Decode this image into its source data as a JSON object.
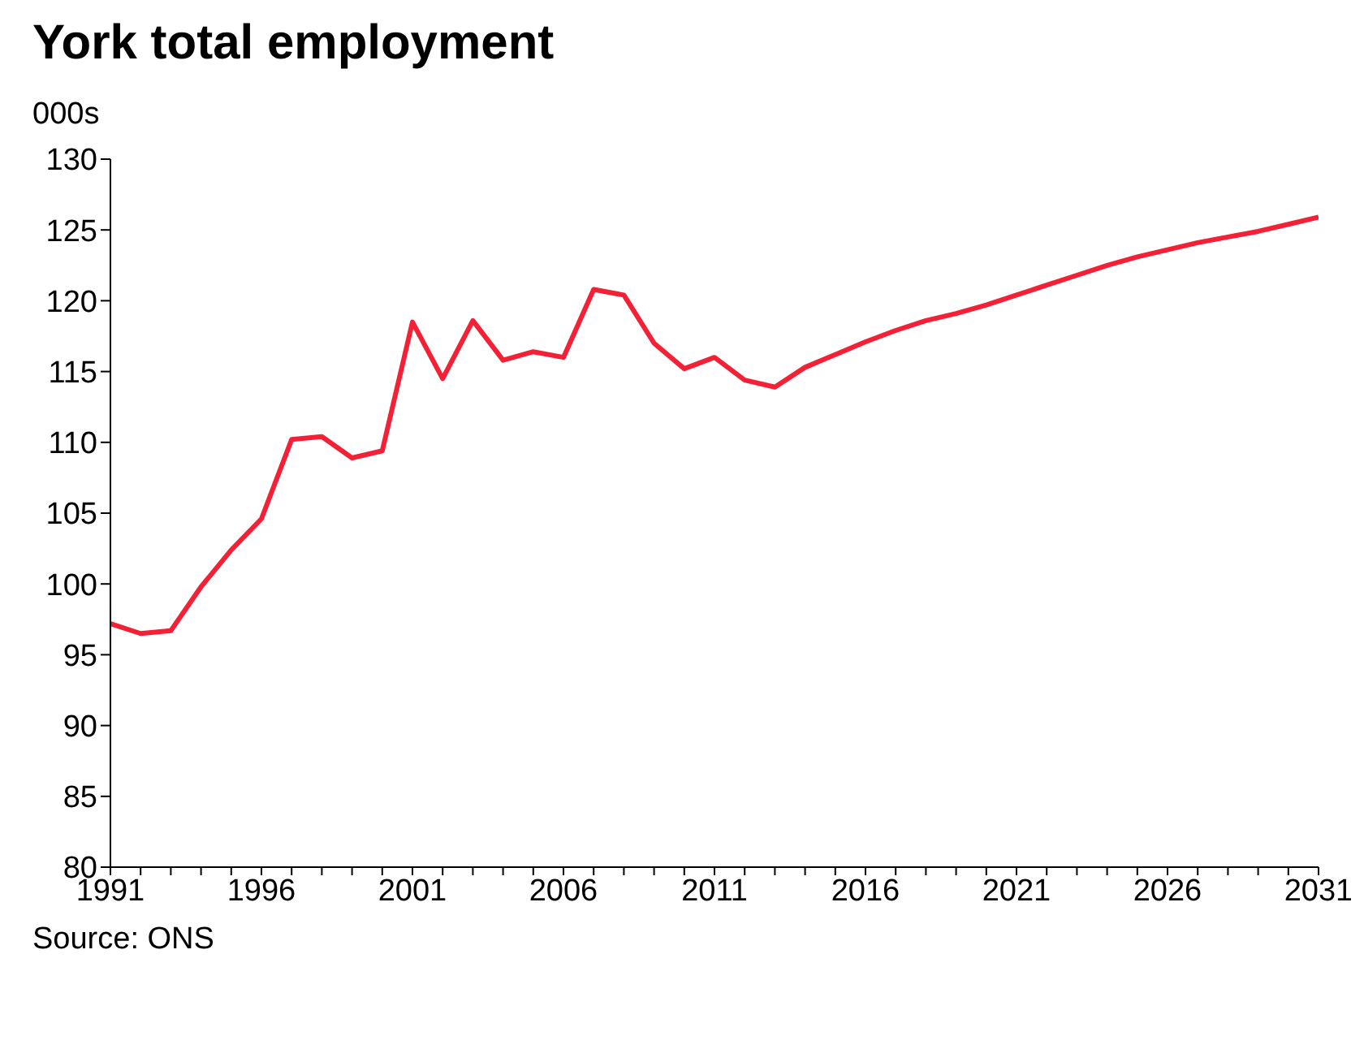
{
  "chart_data": {
    "type": "line",
    "title": "York total employment",
    "ylabel": "000s",
    "annotations": [
      "Source: ONS"
    ],
    "x": [
      1991,
      1992,
      1993,
      1994,
      1995,
      1996,
      1997,
      1998,
      1999,
      2000,
      2001,
      2002,
      2003,
      2004,
      2005,
      2006,
      2007,
      2008,
      2009,
      2010,
      2011,
      2012,
      2013,
      2014,
      2015,
      2016,
      2017,
      2018,
      2019,
      2020,
      2021,
      2022,
      2023,
      2024,
      2025,
      2026,
      2027,
      2028,
      2029,
      2030,
      2031
    ],
    "series": [
      {
        "color": "#f42035",
        "values": [
          97.2,
          96.5,
          96.7,
          99.8,
          102.4,
          104.6,
          110.2,
          110.4,
          108.9,
          109.4,
          118.5,
          114.5,
          118.6,
          115.8,
          116.4,
          116.0,
          120.8,
          120.4,
          117.0,
          115.2,
          116.0,
          114.4,
          113.9,
          115.3,
          116.2,
          117.1,
          117.9,
          118.6,
          119.1,
          119.7,
          120.4,
          121.1,
          121.8,
          122.5,
          123.1,
          123.6,
          124.1,
          124.5,
          124.9,
          125.4,
          125.9
        ]
      }
    ],
    "xlim": [
      1991,
      2031
    ],
    "xticks": [
      1991,
      {
        "value": 1992,
        "label": null
      },
      {
        "value": 1993,
        "label": null
      },
      {
        "value": 1994,
        "label": null
      },
      {
        "value": 1995,
        "label": null
      },
      1996,
      {
        "value": 1997,
        "label": null
      },
      {
        "value": 1998,
        "label": null
      },
      {
        "value": 1999,
        "label": null
      },
      {
        "value": 2000,
        "label": null
      },
      2001,
      {
        "value": 2002,
        "label": null
      },
      {
        "value": 2003,
        "label": null
      },
      {
        "value": 2004,
        "label": null
      },
      {
        "value": 2005,
        "label": null
      },
      2006,
      {
        "value": 2007,
        "label": null
      },
      {
        "value": 2008,
        "label": null
      },
      {
        "value": 2009,
        "label": null
      },
      {
        "value": 2010,
        "label": null
      },
      2011,
      {
        "value": 2012,
        "label": null
      },
      {
        "value": 2013,
        "label": null
      },
      {
        "value": 2014,
        "label": null
      },
      {
        "value": 2015,
        "label": null
      },
      2016,
      {
        "value": 2017,
        "label": null
      },
      {
        "value": 2018,
        "label": null
      },
      {
        "value": 2019,
        "label": null
      },
      {
        "value": 2020,
        "label": null
      },
      2021,
      {
        "value": 2022,
        "label": null
      },
      {
        "value": 2023,
        "label": null
      },
      {
        "value": 2024,
        "label": null
      },
      {
        "value": 2025,
        "label": null
      },
      2026,
      {
        "value": 2027,
        "label": null
      },
      {
        "value": 2028,
        "label": null
      },
      {
        "value": 2029,
        "label": null
      },
      {
        "value": 2030,
        "label": null
      },
      2031
    ],
    "ylim": [
      80,
      130
    ],
    "yticks": [
      80,
      85,
      90,
      95,
      100,
      105,
      110,
      115,
      120,
      125,
      130
    ],
    "grid": false,
    "legend": false,
    "marker": "none",
    "line_style": "solid"
  }
}
